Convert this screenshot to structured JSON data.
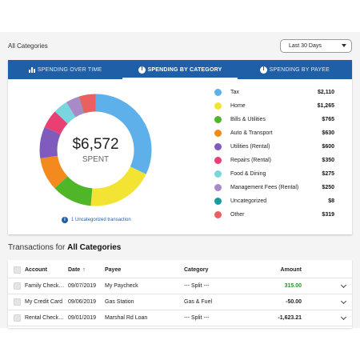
{
  "header": {
    "scope_label": "All Categories",
    "range_select": {
      "value": "Last 30 Days"
    }
  },
  "tabs": [
    {
      "label": "SPENDING OVER TIME",
      "icon": "bar-chart-icon",
      "active": false
    },
    {
      "label": "SPENDING BY CATEGORY",
      "icon": "pie-chart-icon",
      "active": true
    },
    {
      "label": "SPENDING BY PAYEE",
      "icon": "pie-chart-icon",
      "active": false
    }
  ],
  "summary": {
    "amount": "$6,572",
    "label": "SPENT",
    "uncategorized_note": "1 Uncategorized transaction",
    "info_icon": "info-icon"
  },
  "categories": [
    {
      "name": "Tax",
      "amount": "$2,110",
      "value": 2110,
      "color": "#5db0ea"
    },
    {
      "name": "Home",
      "amount": "$1,265",
      "value": 1265,
      "color": "#f3e433"
    },
    {
      "name": "Bills & Utilities",
      "amount": "$765",
      "value": 765,
      "color": "#4fb62a"
    },
    {
      "name": "Auto & Transport",
      "amount": "$630",
      "value": 630,
      "color": "#f28a1e"
    },
    {
      "name": "Utilities (Rental)",
      "amount": "$600",
      "value": 600,
      "color": "#7e5bbd"
    },
    {
      "name": "Repairs (Rental)",
      "amount": "$350",
      "value": 350,
      "color": "#ea3f73"
    },
    {
      "name": "Food & Dining",
      "amount": "$275",
      "value": 275,
      "color": "#79d5de"
    },
    {
      "name": "Management Fees (Rental)",
      "amount": "$250",
      "value": 250,
      "color": "#a98ac9"
    },
    {
      "name": "Uncategorized",
      "amount": "$8",
      "value": 8,
      "color": "#1a9aa0"
    },
    {
      "name": "Other",
      "amount": "$319",
      "value": 319,
      "color": "#ea5f5f"
    }
  ],
  "transactions": {
    "title_prefix": "Transactions for",
    "title_scope": "All Categories",
    "columns": {
      "account": "Account",
      "date": "Date",
      "payee": "Payee",
      "category": "Category",
      "amount": "Amount"
    },
    "rows": [
      {
        "account": "Family Check…",
        "date": "09/07/2019",
        "payee": "My Paycheck",
        "category": "--- Split ---",
        "amount": "315.00",
        "sign": "pos"
      },
      {
        "account": "My Credit Card",
        "date": "09/06/2019",
        "payee": "Gas Station",
        "category": "Gas & Fuel",
        "amount": "-50.00",
        "sign": "neg"
      },
      {
        "account": "Rental Check…",
        "date": "09/01/2019",
        "payee": "Marshal Rd Loan",
        "category": "--- Split ---",
        "amount": "-1,623.21",
        "sign": "neg"
      }
    ]
  }
}
